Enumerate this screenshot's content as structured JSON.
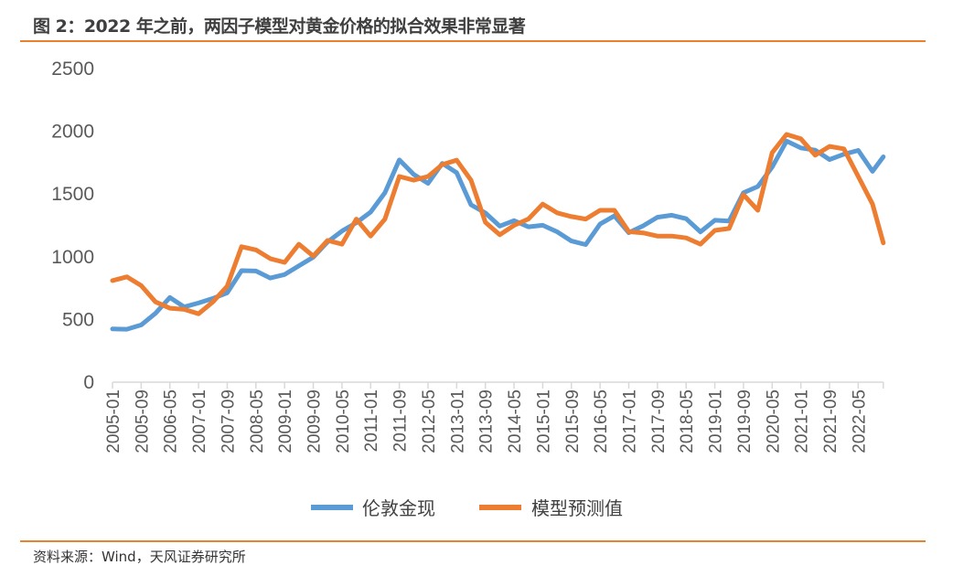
{
  "title": "图 2：2022 年之前，两因子模型对黄金价格的拟合效果非常显著",
  "source": "资料来源：Wind，天风证券研究所",
  "colors": {
    "accent": "#e8822f",
    "series_blue": "#5b9bd5",
    "series_orange": "#ed7d31",
    "axis": "#d9d9d9"
  },
  "chart_data": {
    "type": "line",
    "title": "",
    "xlabel": "",
    "ylabel": "",
    "ylim": [
      0,
      2500
    ],
    "yticks": [
      "0",
      "500",
      "1000",
      "1500",
      "2000",
      "2500"
    ],
    "grid": false,
    "legend_position": "bottom",
    "xticks": [
      "2005-01",
      "2005-09",
      "2006-05",
      "2007-01",
      "2007-09",
      "2008-05",
      "2009-01",
      "2009-09",
      "2010-05",
      "2011-01",
      "2011-09",
      "2012-05",
      "2013-01",
      "2013-09",
      "2014-05",
      "2015-01",
      "2015-09",
      "2016-05",
      "2017-01",
      "2017-09",
      "2018-05",
      "2019-01",
      "2019-09",
      "2020-05",
      "2021-01",
      "2021-09",
      "2022-05"
    ],
    "x": [
      "2005-01",
      "2005-05",
      "2005-09",
      "2006-01",
      "2006-05",
      "2006-09",
      "2007-01",
      "2007-05",
      "2007-09",
      "2008-01",
      "2008-05",
      "2008-09",
      "2009-01",
      "2009-05",
      "2009-09",
      "2010-01",
      "2010-05",
      "2010-09",
      "2011-01",
      "2011-05",
      "2011-09",
      "2012-01",
      "2012-05",
      "2012-09",
      "2013-01",
      "2013-05",
      "2013-09",
      "2014-01",
      "2014-05",
      "2014-09",
      "2015-01",
      "2015-05",
      "2015-09",
      "2016-01",
      "2016-05",
      "2016-09",
      "2017-01",
      "2017-05",
      "2017-09",
      "2018-01",
      "2018-05",
      "2018-09",
      "2019-01",
      "2019-05",
      "2019-09",
      "2020-01",
      "2020-05",
      "2020-09",
      "2021-01",
      "2021-05",
      "2021-09",
      "2022-01",
      "2022-05",
      "2022-09",
      "2022-12"
    ],
    "series": [
      {
        "name": "伦敦金现",
        "color": "#5b9bd5",
        "values": [
          424,
          422,
          456,
          549,
          675,
          600,
          631,
          668,
          712,
          889,
          886,
          830,
          858,
          928,
          996,
          1118,
          1205,
          1271,
          1356,
          1510,
          1772,
          1656,
          1585,
          1744,
          1670,
          1414,
          1349,
          1244,
          1288,
          1238,
          1251,
          1199,
          1125,
          1097,
          1260,
          1326,
          1192,
          1246,
          1315,
          1331,
          1303,
          1198,
          1291,
          1284,
          1510,
          1560,
          1715,
          1922,
          1867,
          1850,
          1775,
          1817,
          1848,
          1681,
          1797
        ]
      },
      {
        "name": "模型预测值",
        "color": "#ed7d31",
        "values": [
          810,
          840,
          770,
          640,
          590,
          580,
          545,
          640,
          765,
          1080,
          1055,
          985,
          955,
          1100,
          1005,
          1130,
          1100,
          1300,
          1165,
          1300,
          1640,
          1610,
          1640,
          1735,
          1770,
          1610,
          1275,
          1175,
          1250,
          1300,
          1420,
          1350,
          1320,
          1300,
          1370,
          1370,
          1200,
          1190,
          1165,
          1165,
          1150,
          1100,
          1210,
          1225,
          1495,
          1370,
          1830,
          1975,
          1940,
          1810,
          1880,
          1860,
          1640,
          1420,
          1110
        ]
      }
    ]
  }
}
